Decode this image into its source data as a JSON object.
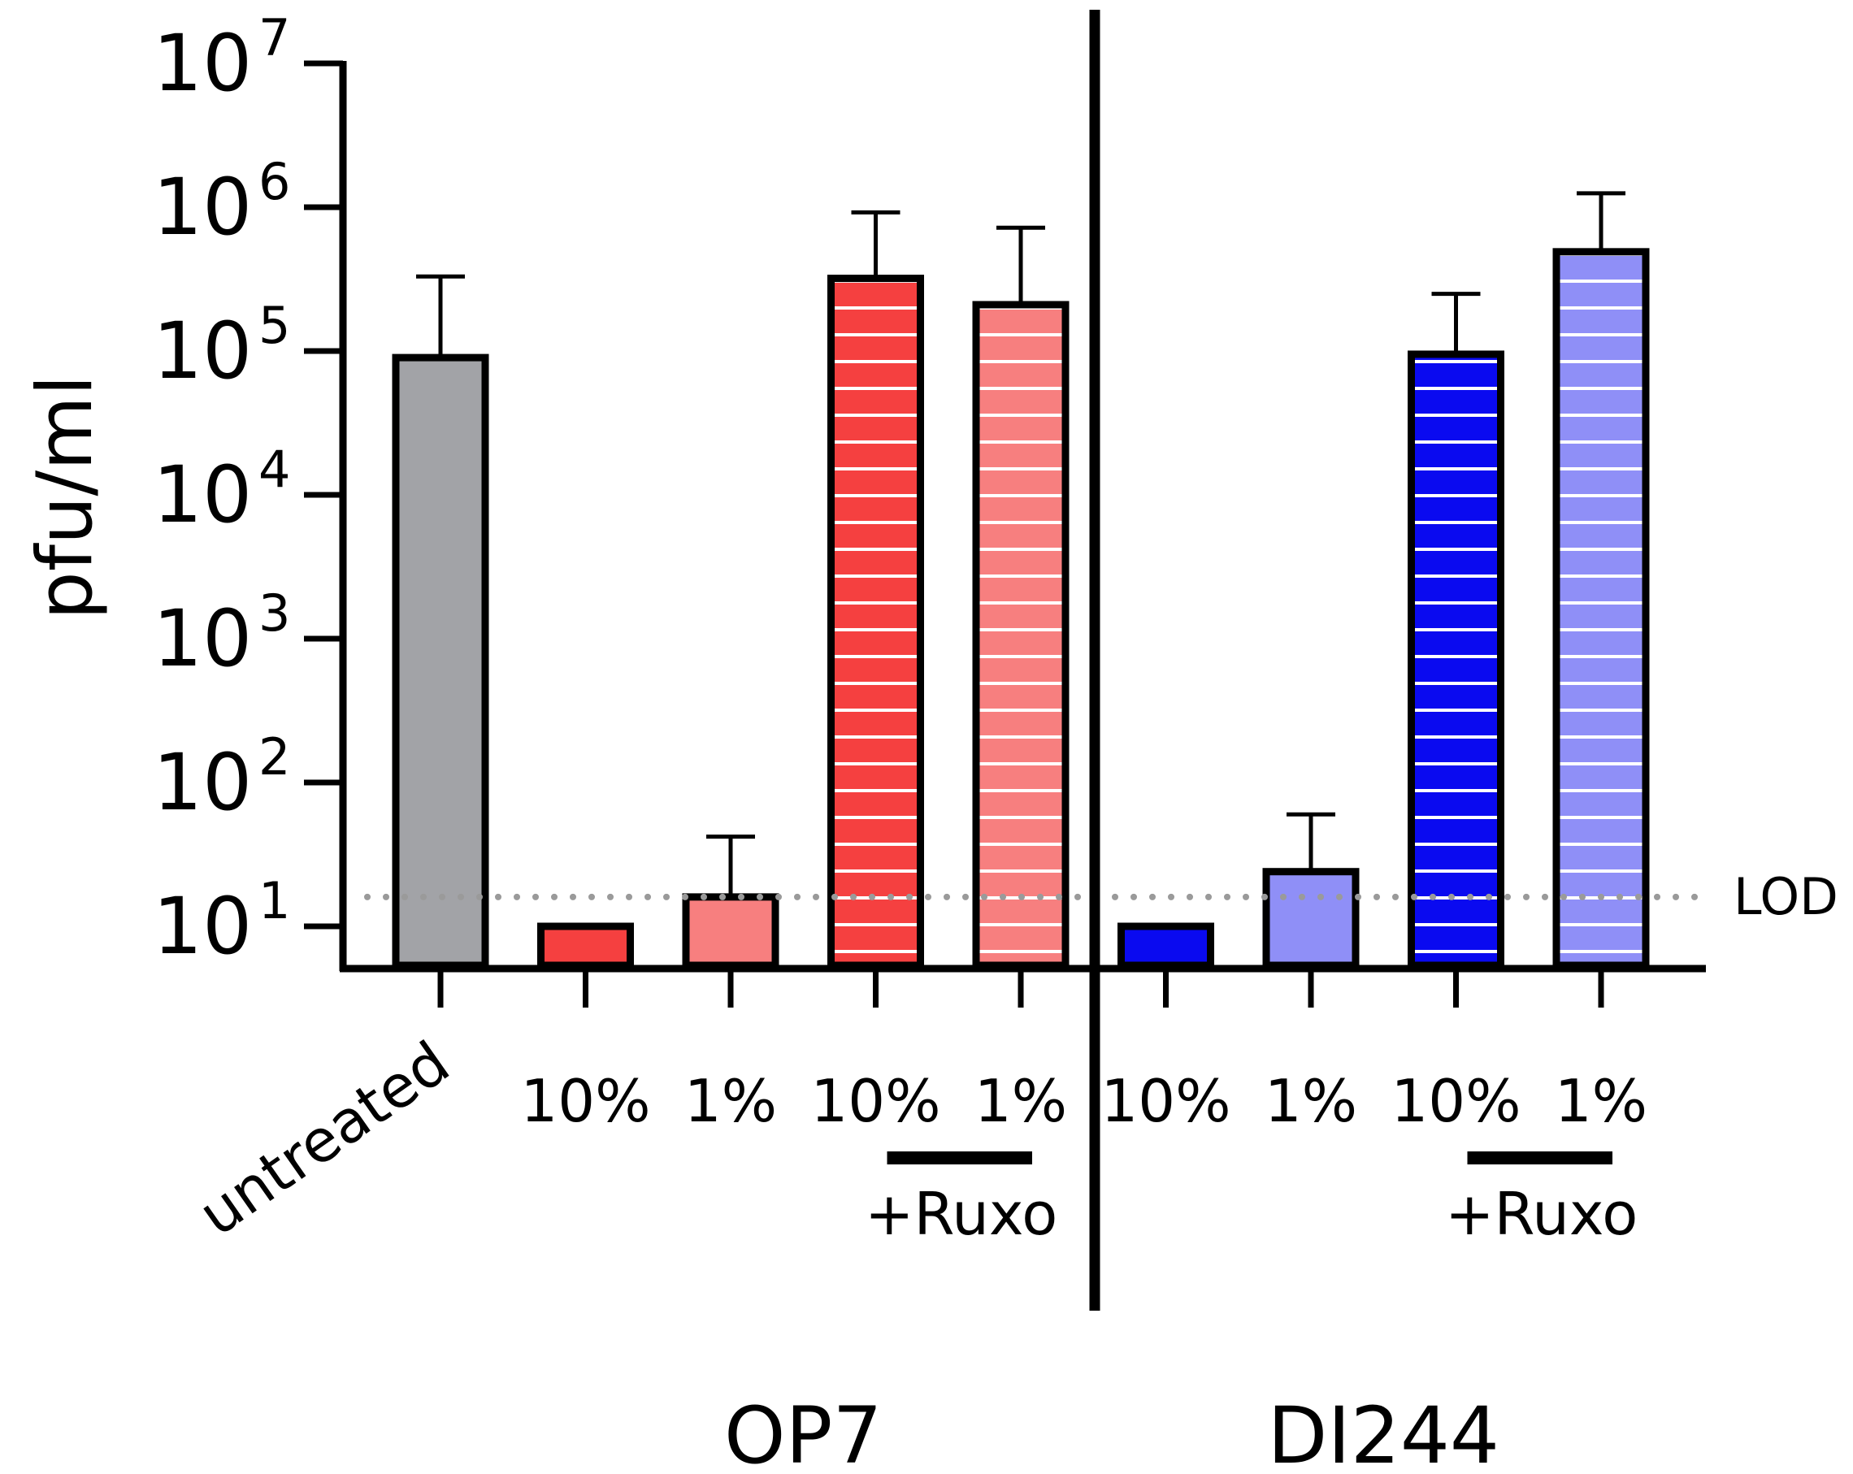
{
  "chart_data": {
    "type": "bar",
    "title": "",
    "xlabel": "",
    "ylabel": "pfu/ml",
    "y_scale": "log10",
    "ylim": [
      10,
      10000000
    ],
    "yticks": [
      {
        "value": 10,
        "base": "10",
        "exp": "1"
      },
      {
        "value": 100,
        "base": "10",
        "exp": "2"
      },
      {
        "value": 1000,
        "base": "10",
        "exp": "3"
      },
      {
        "value": 10000,
        "base": "10",
        "exp": "4"
      },
      {
        "value": 100000,
        "base": "10",
        "exp": "5"
      },
      {
        "value": 1000000,
        "base": "10",
        "exp": "6"
      },
      {
        "value": 10000000,
        "base": "10",
        "exp": "7"
      }
    ],
    "bars": [
      {
        "label": "untreated",
        "value": 90000,
        "error_upper": 330000,
        "fill": "#a2a3a7",
        "striped": false,
        "group": ""
      },
      {
        "label": "10%",
        "value": 10,
        "error_upper": null,
        "fill": "#f54040",
        "striped": false,
        "group": "OP7"
      },
      {
        "label": "1%",
        "value": 16,
        "error_upper": 42,
        "fill": "#f77f7f",
        "striped": false,
        "group": "OP7"
      },
      {
        "label": "10%",
        "value": 320000,
        "error_upper": 920000,
        "fill": "#f54040",
        "striped": true,
        "group": "OP7"
      },
      {
        "label": "1%",
        "value": 210000,
        "error_upper": 720000,
        "fill": "#f77f7f",
        "striped": true,
        "group": "OP7"
      },
      {
        "label": "10%",
        "value": 10,
        "error_upper": null,
        "fill": "#0a0af0",
        "striped": false,
        "group": "DI244"
      },
      {
        "label": "1%",
        "value": 24,
        "error_upper": 60,
        "fill": "#8f8ff7",
        "striped": false,
        "group": "DI244"
      },
      {
        "label": "10%",
        "value": 95000,
        "error_upper": 250000,
        "fill": "#0a0af0",
        "striped": true,
        "group": "DI244"
      },
      {
        "label": "1%",
        "value": 490000,
        "error_upper": 1250000,
        "fill": "#8f8ff7",
        "striped": true,
        "group": "DI244"
      }
    ],
    "reference_line": {
      "label": "LOD",
      "value": 16,
      "style": "dotted",
      "color": "#9a9a9a"
    },
    "treatment_labels": [
      {
        "label": "+Ruxo",
        "bars": [
          3,
          4
        ]
      },
      {
        "label": "+Ruxo",
        "bars": [
          7,
          8
        ]
      }
    ],
    "group_labels": [
      {
        "label": "OP7",
        "bars": [
          1,
          2,
          3,
          4
        ]
      },
      {
        "label": "DI244",
        "bars": [
          5,
          6,
          7,
          8
        ]
      }
    ],
    "divider_after_bar": 4
  }
}
